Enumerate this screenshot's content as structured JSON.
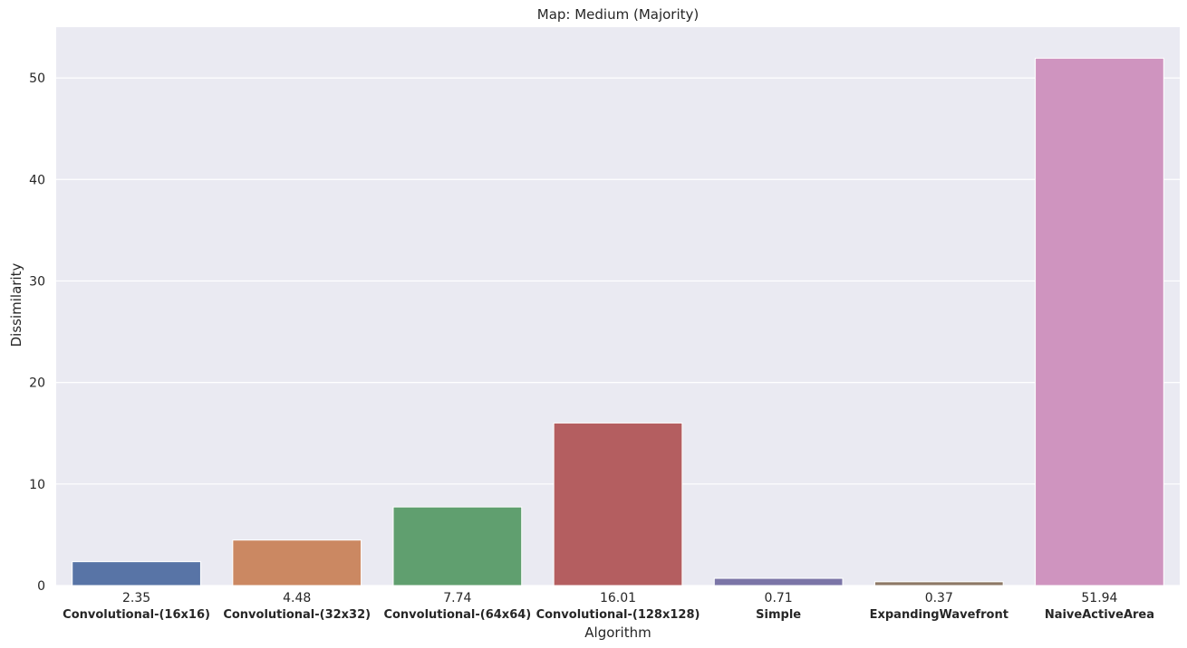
{
  "chart_data": {
    "type": "bar",
    "title": "Map: Medium (Majority)",
    "xlabel": "Algorithm",
    "ylabel": "Dissimilarity",
    "categories": [
      "Convolutional-(16x16)",
      "Convolutional-(32x32)",
      "Convolutional-(64x64)",
      "Convolutional-(128x128)",
      "Simple",
      "ExpandingWavefront",
      "NaiveActiveArea"
    ],
    "values": [
      2.35,
      4.48,
      7.74,
      16.01,
      0.71,
      0.37,
      51.94
    ],
    "value_labels": [
      "2.35",
      "4.48",
      "7.74",
      "16.01",
      "0.71",
      "0.37",
      "51.94"
    ],
    "colors": [
      "#5874a6",
      "#cb8862",
      "#609f6f",
      "#b45e60",
      "#7b75a7",
      "#8d7865",
      "#cf94bf"
    ],
    "ylim": [
      0,
      55
    ],
    "yticks": [
      0,
      10,
      20,
      30,
      40,
      50
    ],
    "grid": true,
    "background": "#eaeaf2"
  }
}
